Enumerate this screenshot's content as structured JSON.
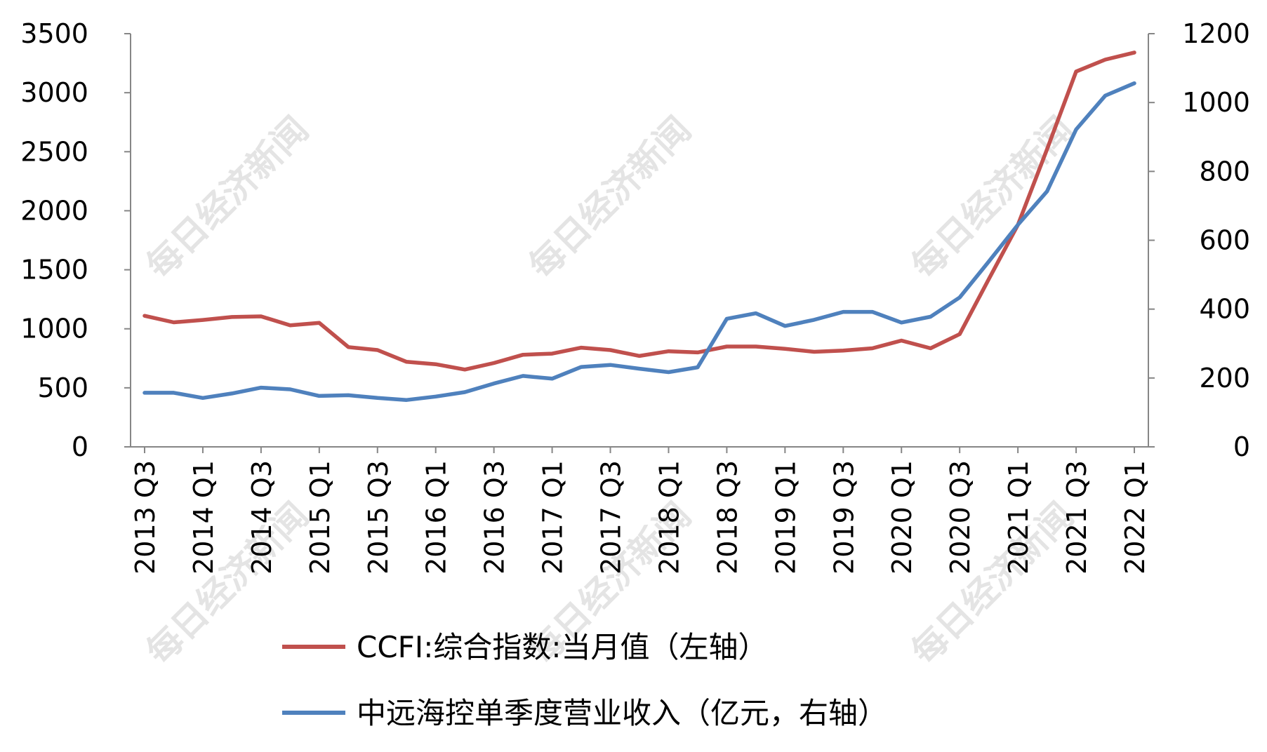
{
  "colors": {
    "ccfi": "#c0504d",
    "revenue": "#4f81bd",
    "axis": "#868686",
    "watermark": "#e4e4e4"
  },
  "watermark": "每日经济新闻",
  "chart_data": {
    "type": "line",
    "categories": [
      "2013 Q3",
      "2013 Q4",
      "2014 Q1",
      "2014 Q2",
      "2014 Q3",
      "2014 Q4",
      "2015 Q1",
      "2015 Q2",
      "2015 Q3",
      "2015 Q4",
      "2016 Q1",
      "2016 Q2",
      "2016 Q3",
      "2016 Q4",
      "2017 Q1",
      "2017 Q2",
      "2017 Q3",
      "2017 Q4",
      "2018 Q1",
      "2018 Q2",
      "2018 Q3",
      "2018 Q4",
      "2019 Q1",
      "2019 Q2",
      "2019 Q3",
      "2019 Q4",
      "2020 Q1",
      "2020 Q2",
      "2020 Q3",
      "2020 Q4",
      "2021 Q1",
      "2021 Q2",
      "2021 Q3",
      "2021 Q4",
      "2022 Q1"
    ],
    "tick_labels": [
      "2013 Q3",
      "2014 Q1",
      "2014 Q3",
      "2015 Q1",
      "2015 Q3",
      "2016 Q1",
      "2016 Q3",
      "2017 Q1",
      "2017 Q3",
      "2018 Q1",
      "2018 Q3",
      "2019 Q1",
      "2019 Q3",
      "2020 Q1",
      "2020 Q3",
      "2021 Q1",
      "2021 Q3",
      "2022 Q1"
    ],
    "y_left": {
      "min": 0,
      "max": 3500,
      "ticks": [
        "0",
        "500",
        "1000",
        "1500",
        "2000",
        "2500",
        "3000",
        "3500"
      ]
    },
    "y_right": {
      "min": 0,
      "max": 1200,
      "ticks": [
        "0",
        "200",
        "400",
        "600",
        "800",
        "1000",
        "1200"
      ]
    },
    "grid": false,
    "legend_position": "bottom",
    "series": [
      {
        "name": "CCFI:综合指数:当月值（左轴）",
        "axis": "left",
        "values": [
          1110,
          1055,
          1075,
          1100,
          1105,
          1030,
          1050,
          845,
          820,
          720,
          700,
          655,
          710,
          780,
          790,
          840,
          820,
          770,
          810,
          800,
          850,
          850,
          830,
          805,
          815,
          835,
          900,
          835,
          955,
          1420,
          1880,
          2520,
          3180,
          3280,
          3340
        ]
      },
      {
        "name": "中远海控单季度营业收入（亿元，右轴）",
        "axis": "right",
        "values": [
          157,
          157,
          142,
          155,
          172,
          167,
          148,
          150,
          142,
          136,
          146,
          159,
          184,
          206,
          198,
          232,
          238,
          227,
          217,
          231,
          372,
          388,
          351,
          369,
          392,
          392,
          361,
          378,
          434,
          538,
          645,
          742,
          922,
          1020,
          1056
        ]
      }
    ]
  }
}
